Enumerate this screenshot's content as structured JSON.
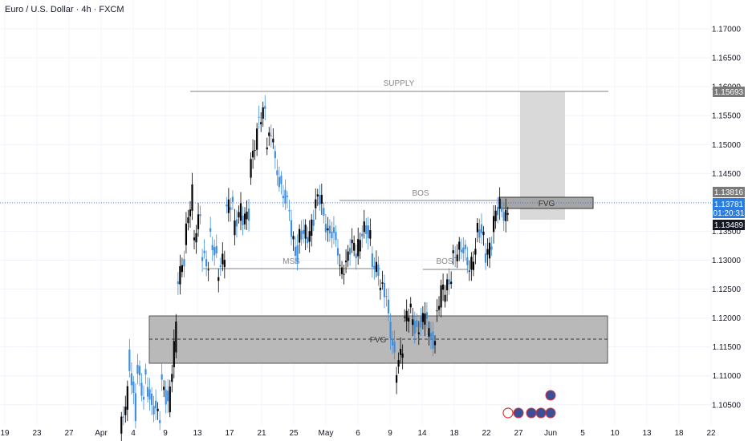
{
  "header": {
    "title": "Euro / U.S. Dollar · 4h · FXCM"
  },
  "colors": {
    "up": "#000000",
    "down": "#3f8fe0",
    "grid": "#f0f3fa",
    "zone": "#b5b5b5",
    "supply_box": "#d9d9d9",
    "current_price": "#1e5fbf"
  },
  "chart_data": {
    "type": "candlestick",
    "instrument": "Euro / U.S. Dollar",
    "interval": "4h",
    "source": "FXCM",
    "ylim": [
      1.1015,
      1.1725
    ],
    "y_ticks": [
      "1.17000",
      "1.16500",
      "1.16000",
      "1.15500",
      "1.15000",
      "1.14500",
      "1.14000",
      "1.13500",
      "1.13000",
      "1.12500",
      "1.12000",
      "1.11500",
      "1.11000",
      "1.10500"
    ],
    "x_ticks": [
      "19",
      "23",
      "27",
      "Apr",
      "4",
      "9",
      "13",
      "17",
      "21",
      "25",
      "May",
      "6",
      "9",
      "14",
      "18",
      "22",
      "27",
      "Jun",
      "5",
      "10",
      "13",
      "18",
      "22"
    ],
    "price_labels": {
      "supply_level": "1.15693",
      "zone_top": "1.13816",
      "current": "1.13781",
      "countdown": "01:20:31",
      "zone_bottom": "1.13489"
    },
    "annotations": [
      "SUPPLY",
      "BOS",
      "FVG",
      "MSS",
      "BOS",
      "FVG"
    ],
    "price_path": [
      [
        1.1,
        1.107
      ],
      [
        1.1145,
        1.103
      ],
      [
        1.112,
        1.106
      ],
      [
        1.111,
        1.104
      ],
      [
        1.105,
        1.103
      ],
      [
        1.11,
        1.105
      ],
      [
        1.104,
        1.119
      ],
      [
        1.126,
        1.13
      ],
      [
        1.133,
        1.142
      ],
      [
        1.133,
        1.138
      ],
      [
        1.131,
        1.129
      ],
      [
        1.135,
        1.13
      ],
      [
        1.127,
        1.131
      ],
      [
        1.139,
        1.14
      ],
      [
        1.135,
        1.139
      ],
      [
        1.137,
        1.138
      ],
      [
        1.145,
        1.152
      ],
      [
        1.154,
        1.156
      ],
      [
        1.15,
        1.152
      ],
      [
        1.148,
        1.142
      ],
      [
        1.142,
        1.139
      ],
      [
        1.136,
        1.13
      ],
      [
        1.134,
        1.135
      ],
      [
        1.133,
        1.137
      ],
      [
        1.14,
        1.141
      ],
      [
        1.138,
        1.134
      ],
      [
        1.136,
        1.132
      ],
      [
        1.128,
        1.129
      ],
      [
        1.131,
        1.133
      ],
      [
        1.13,
        1.135
      ],
      [
        1.136,
        1.134
      ],
      [
        1.13,
        1.128
      ],
      [
        1.126,
        1.124
      ],
      [
        1.122,
        1.113
      ],
      [
        1.11,
        1.115
      ],
      [
        1.119,
        1.122
      ],
      [
        1.12,
        1.117
      ],
      [
        1.119,
        1.121
      ],
      [
        1.118,
        1.115
      ],
      [
        1.12,
        1.126
      ],
      [
        1.124,
        1.127
      ],
      [
        1.13,
        1.132
      ],
      [
        1.133,
        1.13
      ],
      [
        1.127,
        1.132
      ],
      [
        1.136,
        1.134
      ],
      [
        1.13,
        1.133
      ],
      [
        1.136,
        1.14
      ],
      [
        1.1381,
        1.1378
      ]
    ]
  }
}
